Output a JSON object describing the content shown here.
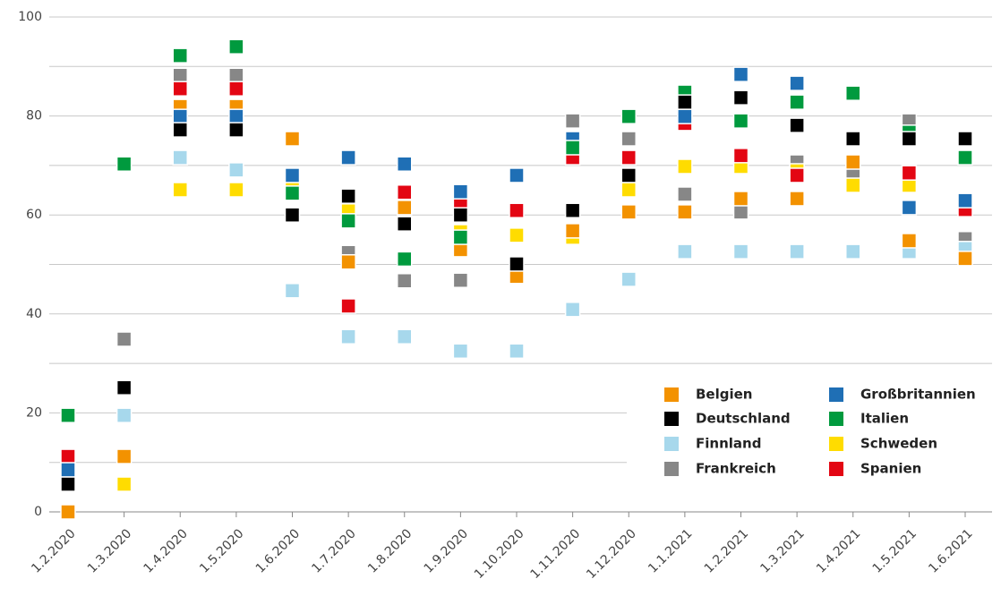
{
  "chart_data": {
    "type": "scatter",
    "categories": [
      "1.2.2020",
      "1.3.2020",
      "1.4.2020",
      "1.5.2020",
      "1.6.2020",
      "1.7.2020",
      "1.8.2020",
      "1.9.2020",
      "1.10.2020",
      "1.11.2020",
      "1.12.2020",
      "1.1.2021",
      "1.2.2021",
      "1.3.2021",
      "1.4.2021",
      "1.5.2021",
      "1.6.2021"
    ],
    "ylim": [
      0,
      100
    ],
    "yticks": [
      0,
      20,
      40,
      60,
      80,
      100
    ],
    "minor_yticks": [
      10,
      30,
      50,
      70,
      90
    ],
    "grid": true,
    "legend": "lower right",
    "series": [
      {
        "name": "Belgien",
        "color": "#f39200",
        "values": [
          0,
          11.2,
          81.9,
          81.9,
          75.4,
          50.5,
          61.5,
          53.0,
          47.6,
          56.8,
          60.6,
          60.6,
          63.3,
          63.3,
          70.7,
          54.8,
          51.2
        ]
      },
      {
        "name": "Deutschland",
        "color": "#000000",
        "values": [
          5.6,
          25.1,
          77.2,
          77.2,
          60.0,
          63.8,
          58.2,
          60.0,
          50.1,
          60.9,
          68.0,
          82.8,
          83.7,
          78.1,
          75.4,
          75.4,
          75.4
        ]
      },
      {
        "name": "Finnland",
        "color": "#a7d8ec",
        "values": [
          null,
          19.5,
          71.6,
          69.1,
          44.7,
          35.4,
          35.4,
          32.5,
          32.5,
          40.9,
          47.0,
          52.6,
          52.6,
          52.6,
          52.6,
          52.6,
          53.2
        ]
      },
      {
        "name": "Frankreich",
        "color": "#878787",
        "values": [
          null,
          34.9,
          88.2,
          88.2,
          null,
          52.4,
          46.7,
          46.8,
          null,
          79.0,
          75.4,
          64.2,
          60.6,
          70.7,
          68.5,
          79.0,
          55.2
        ]
      },
      {
        "name": "Großbritannien",
        "color": "#1f6fb5",
        "values": [
          8.5,
          null,
          79.9,
          79.9,
          68.0,
          71.6,
          70.3,
          64.7,
          68.0,
          75.4,
          null,
          79.9,
          88.4,
          86.6,
          null,
          61.5,
          62.9
        ]
      },
      {
        "name": "Italien",
        "color": "#009a3e",
        "values": [
          19.5,
          70.3,
          92.2,
          94.0,
          64.4,
          58.8,
          51.1,
          55.5,
          null,
          73.6,
          79.9,
          84.8,
          79.0,
          82.8,
          84.6,
          76.7,
          71.6
        ]
      },
      {
        "name": "Schweden",
        "color": "#ffdc00",
        "values": [
          null,
          5.6,
          65.1,
          65.1,
          66.0,
          60.8,
          null,
          56.6,
          55.9,
          55.5,
          65.1,
          69.8,
          69.8,
          68.9,
          66.0,
          66.0,
          null
        ]
      },
      {
        "name": "Spanien",
        "color": "#e30613",
        "values": [
          11.2,
          null,
          85.5,
          85.5,
          null,
          41.6,
          64.6,
          62.2,
          60.9,
          71.6,
          71.6,
          78.5,
          72.0,
          68.0,
          null,
          68.5,
          61.1
        ]
      }
    ]
  }
}
